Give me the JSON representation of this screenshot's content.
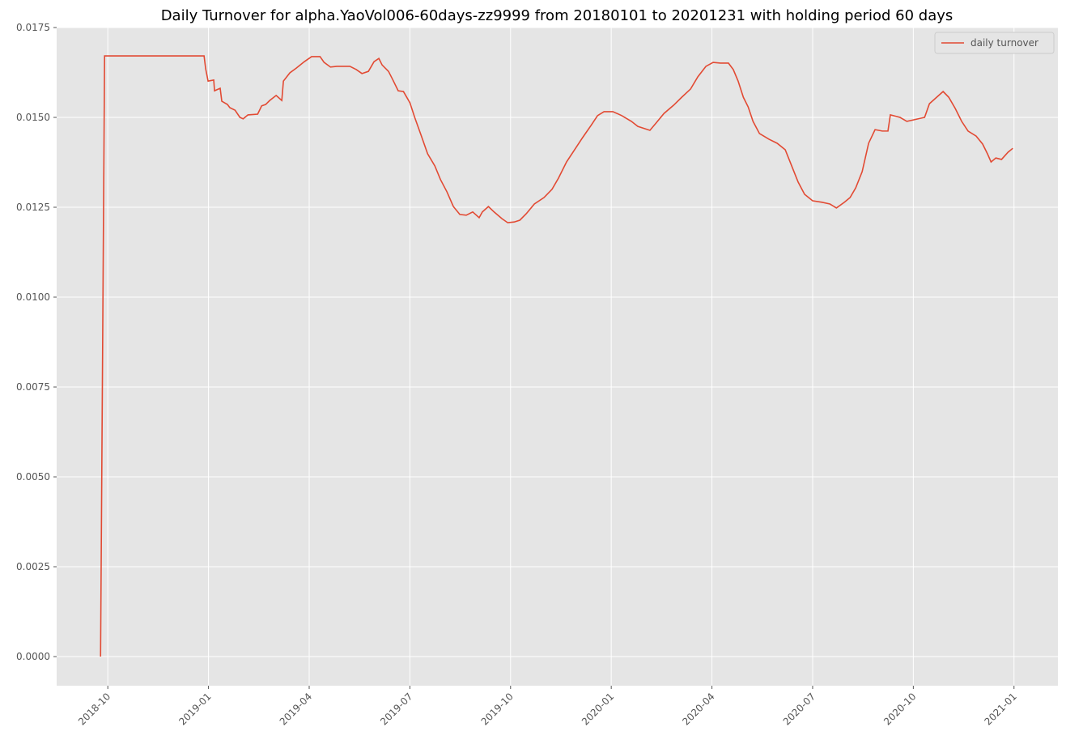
{
  "chart_data": {
    "type": "line",
    "title": "Daily Turnover for alpha.YaoVol006-60days-zz9999 from 20180101 to 20201231 with holding period 60 days",
    "x": [
      2018.732,
      2018.742,
      2018.989,
      2018.993,
      2018.999,
      2019.013,
      2019.015,
      2019.029,
      2019.033,
      2019.047,
      2019.053,
      2019.066,
      2019.078,
      2019.086,
      2019.098,
      2019.122,
      2019.132,
      2019.142,
      2019.152,
      2019.168,
      2019.182,
      2019.186,
      2019.202,
      2019.218,
      2019.238,
      2019.256,
      2019.277,
      2019.287,
      2019.303,
      2019.319,
      2019.351,
      2019.367,
      2019.381,
      2019.397,
      2019.411,
      2019.423,
      2019.431,
      2019.447,
      2019.457,
      2019.471,
      2019.484,
      2019.5,
      2019.512,
      2019.528,
      2019.544,
      2019.562,
      2019.576,
      2019.592,
      2019.608,
      2019.624,
      2019.64,
      2019.656,
      2019.672,
      2019.68,
      2019.695,
      2019.709,
      2019.729,
      2019.743,
      2019.759,
      2019.773,
      2019.789,
      2019.809,
      2019.833,
      2019.853,
      2019.869,
      2019.889,
      2019.909,
      2019.929,
      2019.95,
      2019.966,
      2019.982,
      2020.004,
      2020.026,
      2020.05,
      2020.066,
      2020.096,
      2020.111,
      2020.131,
      2020.155,
      2020.175,
      2020.197,
      2020.215,
      2020.235,
      2020.253,
      2020.271,
      2020.291,
      2020.303,
      2020.315,
      2020.328,
      2020.34,
      2020.352,
      2020.368,
      2020.392,
      2020.412,
      2020.432,
      2020.448,
      2020.464,
      2020.48,
      2020.5,
      2020.523,
      2020.543,
      2020.559,
      2020.579,
      2020.593,
      2020.607,
      2020.623,
      2020.639,
      2020.655,
      2020.673,
      2020.687,
      2020.693,
      2020.717,
      2020.734,
      2020.75,
      2020.778,
      2020.79,
      2020.806,
      2020.824,
      2020.838,
      2020.854,
      2020.87,
      2020.886,
      2020.906,
      2020.922,
      2020.934,
      2020.943,
      2020.955,
      2020.969,
      2020.985,
      2020.997
    ],
    "series": [
      {
        "name": "daily turnover",
        "color": "#E24A33",
        "values": [
          0,
          0.01671,
          0.01671,
          0.01635,
          0.01601,
          0.01604,
          0.01574,
          0.01581,
          0.01545,
          0.01536,
          0.01527,
          0.0152,
          0.015,
          0.01496,
          0.01507,
          0.01509,
          0.01532,
          0.01536,
          0.01547,
          0.01561,
          0.01547,
          0.01601,
          0.01624,
          0.01637,
          0.01655,
          0.01669,
          0.01669,
          0.01653,
          0.0164,
          0.01642,
          0.01642,
          0.01633,
          0.01622,
          0.01628,
          0.01655,
          0.01664,
          0.01646,
          0.01628,
          0.01606,
          0.01574,
          0.01572,
          0.01541,
          0.015,
          0.0145,
          0.01399,
          0.01365,
          0.01327,
          0.01293,
          0.01252,
          0.0123,
          0.01228,
          0.01237,
          0.01221,
          0.01237,
          0.01252,
          0.01237,
          0.01218,
          0.01207,
          0.01209,
          0.01214,
          0.01232,
          0.01259,
          0.01277,
          0.013,
          0.01331,
          0.01376,
          0.0141,
          0.01444,
          0.01478,
          0.01505,
          0.01516,
          0.01516,
          0.01505,
          0.01489,
          0.01475,
          0.01464,
          0.01484,
          0.01511,
          0.01534,
          0.01556,
          0.01579,
          0.01613,
          0.01642,
          0.01653,
          0.01651,
          0.01651,
          0.01633,
          0.01601,
          0.01556,
          0.01529,
          0.01489,
          0.01455,
          0.01439,
          0.01428,
          0.0141,
          0.01365,
          0.0132,
          0.01286,
          0.01268,
          0.01264,
          0.01259,
          0.01248,
          0.01264,
          0.01277,
          0.01304,
          0.01349,
          0.01428,
          0.01466,
          0.01462,
          0.01462,
          0.01507,
          0.015,
          0.01489,
          0.01493,
          0.015,
          0.01538,
          0.01554,
          0.01572,
          0.01556,
          0.01525,
          0.01489,
          0.01462,
          0.01448,
          0.01426,
          0.01399,
          0.01376,
          0.01387,
          0.01383,
          0.01403,
          0.01414
        ]
      }
    ],
    "xlim": [
      2018.623,
      2021.109
    ],
    "xticks": [
      {
        "value": 2018.75,
        "label": "2018-10"
      },
      {
        "value": 2019.0,
        "label": "2019-01"
      },
      {
        "value": 2019.25,
        "label": "2019-04"
      },
      {
        "value": 2019.5,
        "label": "2019-07"
      },
      {
        "value": 2019.75,
        "label": "2019-10"
      },
      {
        "value": 2020.0,
        "label": "2020-01"
      },
      {
        "value": 2020.25,
        "label": "2020-04"
      },
      {
        "value": 2020.5,
        "label": "2020-07"
      },
      {
        "value": 2020.75,
        "label": "2020-10"
      },
      {
        "value": 2021.0,
        "label": "2021-01"
      }
    ],
    "ylim": [
      -0.00081,
      0.0175
    ],
    "yticks": [
      {
        "value": 0,
        "label": "0.0000"
      },
      0.0025,
      {
        "value": 0.005,
        "label": "0.0050"
      },
      0.0075,
      {
        "value": 0.01,
        "label": "0.0100"
      },
      0.0125,
      {
        "value": 0.015,
        "label": "0.0150"
      },
      0.0175
    ],
    "grid": true,
    "legend": "upper right"
  }
}
